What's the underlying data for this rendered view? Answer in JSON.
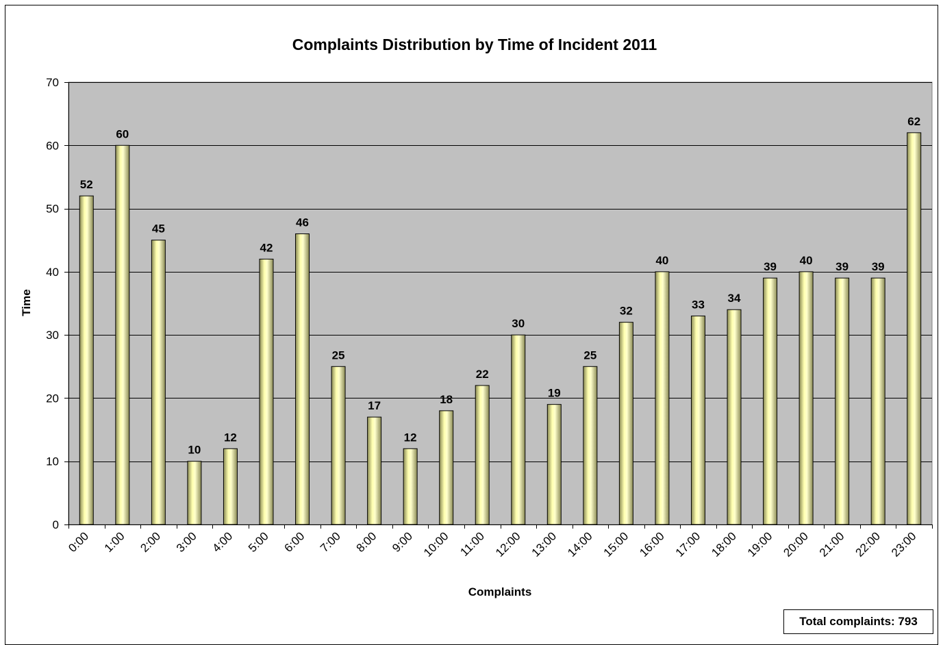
{
  "chart_data": {
    "type": "bar",
    "title": "Complaints Distribution by Time of Incident 2011",
    "xlabel": "Complaints",
    "ylabel": "Time",
    "categories": [
      "0:00",
      "1:00",
      "2:00",
      "3:00",
      "4:00",
      "5:00",
      "6:00",
      "7:00",
      "8:00",
      "9:00",
      "10:00",
      "11:00",
      "12:00",
      "13:00",
      "14:00",
      "15:00",
      "16:00",
      "17:00",
      "18:00",
      "19:00",
      "20:00",
      "21:00",
      "22:00",
      "23:00"
    ],
    "values": [
      52,
      60,
      45,
      10,
      12,
      42,
      46,
      25,
      17,
      12,
      18,
      22,
      30,
      19,
      25,
      32,
      40,
      33,
      34,
      39,
      40,
      39,
      39,
      62
    ],
    "ylim": [
      0,
      70
    ],
    "yticks": [
      0,
      10,
      20,
      30,
      40,
      50,
      60,
      70
    ],
    "grid": true,
    "legend": "none",
    "data_labels": true,
    "colors": {
      "plot_background": "#c0c0c0",
      "bar_fill_light": "#ffffcc",
      "bar_fill_dark": "#999966",
      "bar_outline": "#000000",
      "gridline": "#000000"
    }
  },
  "annotation": {
    "total_text": "Total complaints: 793"
  }
}
